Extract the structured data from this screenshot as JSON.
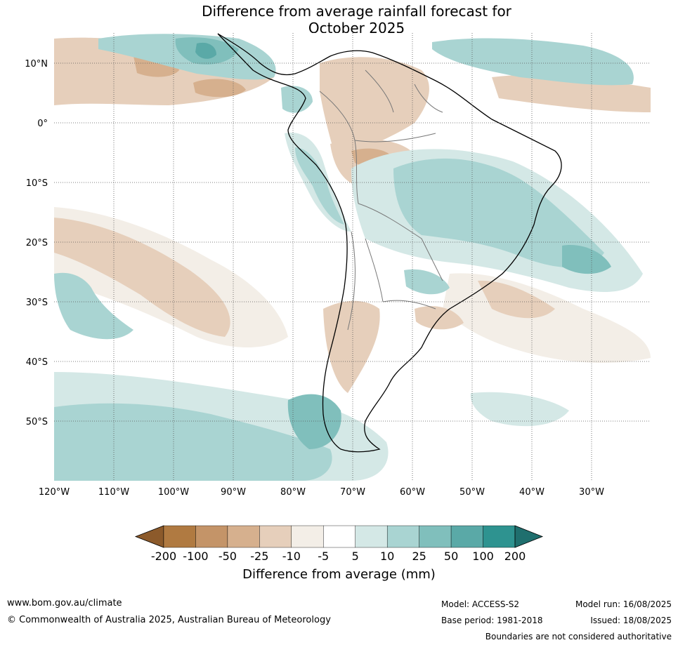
{
  "title_line1": "Difference from average rainfall forecast for",
  "title_line2": "October 2025",
  "lat_labels": [
    "10°N",
    "0°",
    "10°S",
    "20°S",
    "30°S",
    "40°S",
    "50°S"
  ],
  "lon_labels": [
    "120°W",
    "110°W",
    "100°W",
    "90°W",
    "80°W",
    "70°W",
    "60°W",
    "50°W",
    "40°W",
    "30°W"
  ],
  "legend": {
    "title": "Difference from average (mm)",
    "ticks": [
      "-200",
      "-100",
      "-50",
      "-25",
      "-10",
      "-5",
      "5",
      "10",
      "25",
      "50",
      "100",
      "200"
    ],
    "colors": [
      "#8c5a2b",
      "#b07a41",
      "#c49468",
      "#d6b08e",
      "#e6cfbb",
      "#f3eee7",
      "#ffffff",
      "#d4e8e6",
      "#a9d4d2",
      "#80bfbc",
      "#5aa9a7",
      "#2e9390",
      "#1f6f6e"
    ]
  },
  "footer": {
    "website": "www.bom.gov.au/climate",
    "copyright": "© Commonwealth of Australia 2025, Australian Bureau of Meteorology",
    "model": "Model: ACCESS-S2",
    "base_period": "Base period: 1981-2018",
    "model_run": "Model run: 16/08/2025",
    "issued": "Issued: 18/08/2025",
    "disclaimer": "Boundaries are not considered authoritative"
  }
}
